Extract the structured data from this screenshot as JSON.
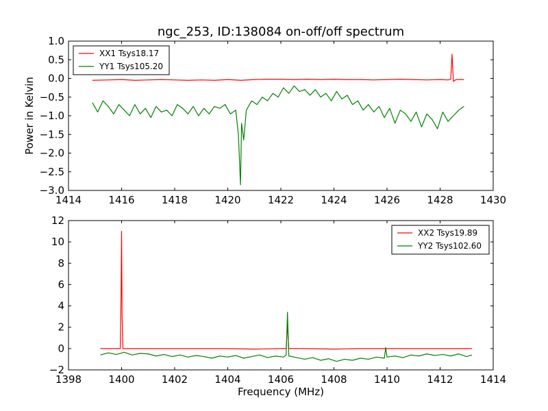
{
  "chart_data": [
    {
      "type": "line",
      "title": "ngc_253, ID:138084 on-off/off spectrum",
      "xlabel": "",
      "ylabel": "Power in Kelvin",
      "xlim": [
        1414,
        1430
      ],
      "ylim": [
        -3.0,
        1.0
      ],
      "xticks": [
        1414,
        1416,
        1418,
        1420,
        1422,
        1424,
        1426,
        1428,
        1430
      ],
      "yticks": [
        -3.0,
        -2.5,
        -2.0,
        -1.5,
        -1.0,
        -0.5,
        0.0,
        0.5,
        1.0
      ],
      "xtick_labels": [
        "1414",
        "1416",
        "1418",
        "1420",
        "1422",
        "1424",
        "1426",
        "1428",
        "1430"
      ],
      "ytick_labels": [
        "−3.0",
        "−2.5",
        "−2.0",
        "−1.5",
        "−1.0",
        "−0.5",
        "0.0",
        "0.5",
        "1.0"
      ],
      "grid": false,
      "legend_position": "top-left",
      "series": [
        {
          "name": "XX1 Tsys18.17",
          "color": "#ff0000",
          "x": [
            1414.9,
            1415.5,
            1416.0,
            1416.5,
            1417.0,
            1417.5,
            1418.0,
            1418.5,
            1419.0,
            1419.5,
            1420.0,
            1420.5,
            1421.0,
            1421.5,
            1422.0,
            1422.5,
            1423.0,
            1423.5,
            1424.0,
            1424.5,
            1425.0,
            1425.5,
            1426.0,
            1426.5,
            1427.0,
            1427.5,
            1428.0,
            1428.3,
            1428.4,
            1428.45,
            1428.5,
            1428.6,
            1428.9
          ],
          "y": [
            -0.05,
            -0.04,
            -0.03,
            -0.05,
            -0.04,
            -0.03,
            -0.04,
            -0.05,
            -0.04,
            -0.05,
            -0.03,
            -0.05,
            -0.03,
            -0.02,
            -0.02,
            -0.03,
            -0.02,
            -0.03,
            -0.02,
            -0.03,
            -0.03,
            -0.04,
            -0.03,
            -0.02,
            -0.03,
            -0.04,
            -0.03,
            -0.04,
            -0.02,
            0.65,
            -0.08,
            -0.03,
            -0.03
          ]
        },
        {
          "name": "YY1 Tsys105.20",
          "color": "#008000",
          "x": [
            1414.9,
            1415.1,
            1415.3,
            1415.5,
            1415.7,
            1415.9,
            1416.1,
            1416.3,
            1416.5,
            1416.7,
            1416.9,
            1417.1,
            1417.3,
            1417.5,
            1417.7,
            1417.9,
            1418.1,
            1418.3,
            1418.5,
            1418.7,
            1418.9,
            1419.1,
            1419.3,
            1419.5,
            1419.7,
            1419.9,
            1420.1,
            1420.3,
            1420.4,
            1420.48,
            1420.52,
            1420.6,
            1420.7,
            1420.9,
            1421.1,
            1421.3,
            1421.5,
            1421.7,
            1421.9,
            1422.1,
            1422.3,
            1422.5,
            1422.7,
            1422.9,
            1423.1,
            1423.3,
            1423.5,
            1423.7,
            1423.9,
            1424.1,
            1424.3,
            1424.5,
            1424.7,
            1424.9,
            1425.1,
            1425.3,
            1425.5,
            1425.7,
            1425.9,
            1426.1,
            1426.3,
            1426.5,
            1426.7,
            1426.9,
            1427.1,
            1427.3,
            1427.5,
            1427.7,
            1427.9,
            1428.1,
            1428.3,
            1428.5,
            1428.7,
            1428.9
          ],
          "y": [
            -0.65,
            -0.9,
            -0.6,
            -0.75,
            -0.95,
            -0.7,
            -0.85,
            -1.0,
            -0.7,
            -0.95,
            -0.8,
            -1.05,
            -0.75,
            -0.9,
            -0.85,
            -1.0,
            -0.7,
            -0.8,
            -0.95,
            -0.75,
            -1.0,
            -0.8,
            -0.95,
            -0.75,
            -0.8,
            -0.7,
            -0.95,
            -0.85,
            -1.5,
            -2.85,
            -1.2,
            -1.65,
            -0.85,
            -0.6,
            -0.7,
            -0.5,
            -0.6,
            -0.4,
            -0.5,
            -0.25,
            -0.4,
            -0.2,
            -0.35,
            -0.3,
            -0.45,
            -0.3,
            -0.5,
            -0.4,
            -0.6,
            -0.35,
            -0.55,
            -0.45,
            -0.7,
            -0.6,
            -0.85,
            -0.7,
            -0.9,
            -0.75,
            -1.05,
            -0.8,
            -1.2,
            -0.85,
            -0.95,
            -1.15,
            -0.9,
            -1.3,
            -0.95,
            -1.1,
            -1.35,
            -0.9,
            -1.15,
            -1.0,
            -0.85,
            -0.75
          ]
        }
      ]
    },
    {
      "type": "line",
      "title": "",
      "xlabel": "Frequency (MHz)",
      "ylabel": "",
      "xlim": [
        1398,
        1414
      ],
      "ylim": [
        -2,
        12
      ],
      "xticks": [
        1398,
        1400,
        1402,
        1404,
        1406,
        1408,
        1410,
        1412,
        1414
      ],
      "yticks": [
        -2,
        0,
        2,
        4,
        6,
        8,
        10,
        12
      ],
      "xtick_labels": [
        "1398",
        "1400",
        "1402",
        "1404",
        "1406",
        "1408",
        "1410",
        "1412",
        "1414"
      ],
      "ytick_labels": [
        "−2",
        "0",
        "2",
        "4",
        "6",
        "8",
        "10",
        "12"
      ],
      "grid": false,
      "legend_position": "top-right",
      "series": [
        {
          "name": "XX2 Tsys19.89",
          "color": "#ff0000",
          "x": [
            1399.2,
            1399.6,
            1399.95,
            1399.98,
            1400.0,
            1400.02,
            1400.05,
            1400.5,
            1401.0,
            1402.0,
            1403.0,
            1404.0,
            1405.0,
            1406.0,
            1406.2,
            1406.25,
            1406.3,
            1406.5,
            1407.0,
            1408.0,
            1409.0,
            1410.0,
            1411.0,
            1412.0,
            1413.2
          ],
          "y": [
            0.0,
            0.0,
            0.0,
            5.0,
            11.0,
            3.0,
            0.0,
            0.0,
            0.0,
            0.0,
            0.0,
            0.0,
            -0.05,
            0.0,
            0.0,
            2.2,
            0.0,
            0.0,
            0.0,
            -0.05,
            0.0,
            0.0,
            0.0,
            0.0,
            0.0
          ]
        },
        {
          "name": "YY2 Tsys102.60",
          "color": "#008000",
          "x": [
            1399.2,
            1399.5,
            1399.8,
            1400.1,
            1400.4,
            1400.7,
            1401.0,
            1401.3,
            1401.6,
            1401.9,
            1402.2,
            1402.5,
            1402.8,
            1403.1,
            1403.4,
            1403.7,
            1404.0,
            1404.3,
            1404.6,
            1404.9,
            1405.2,
            1405.5,
            1405.8,
            1406.1,
            1406.2,
            1406.25,
            1406.3,
            1406.6,
            1406.9,
            1407.2,
            1407.5,
            1407.8,
            1408.1,
            1408.4,
            1408.7,
            1409.0,
            1409.3,
            1409.6,
            1409.9,
            1409.95,
            1410.0,
            1410.3,
            1410.6,
            1410.9,
            1411.2,
            1411.5,
            1411.8,
            1412.1,
            1412.4,
            1412.7,
            1413.0,
            1413.2
          ],
          "y": [
            -0.6,
            -0.4,
            -0.55,
            -0.35,
            -0.6,
            -0.45,
            -0.5,
            -0.7,
            -0.55,
            -0.75,
            -0.6,
            -0.8,
            -0.65,
            -0.75,
            -0.9,
            -0.7,
            -0.8,
            -0.65,
            -0.9,
            -0.75,
            -0.6,
            -0.85,
            -0.7,
            -0.8,
            -0.6,
            3.4,
            -0.7,
            -0.85,
            -1.0,
            -0.85,
            -1.1,
            -0.95,
            -1.2,
            -1.0,
            -1.1,
            -0.9,
            -1.0,
            -0.8,
            -0.9,
            0.1,
            -0.8,
            -0.7,
            -0.85,
            -0.6,
            -0.7,
            -0.5,
            -0.65,
            -0.55,
            -0.7,
            -0.5,
            -0.75,
            -0.6
          ]
        }
      ]
    }
  ]
}
